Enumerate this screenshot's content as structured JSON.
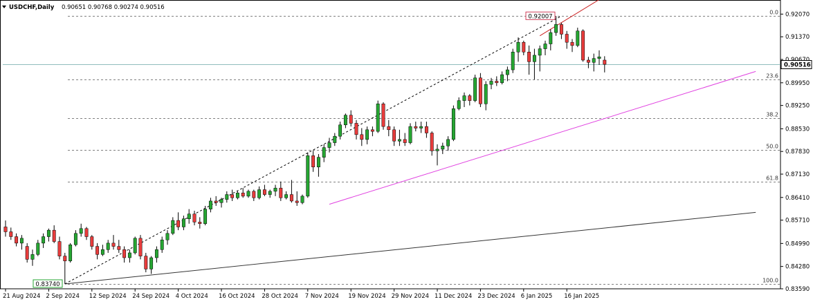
{
  "header": {
    "symbol": "USDCHF,Daily",
    "ohlc": "0.90651 0.90768 0.90274 0.90516"
  },
  "colors": {
    "bull": "#26a632",
    "bear": "#e83c3c",
    "wick": "#000000",
    "fib": "#555555",
    "trend_magenta": "#e040e0",
    "trend_dark": "#333333",
    "current_price_line": "#6aa6a6",
    "high_label": "#d0405a",
    "low_label": "#26a632"
  },
  "annotations": {
    "high_label": "0.92007",
    "low_label": "0.83740",
    "current_price_label": "0.90516"
  },
  "chart_data": {
    "type": "candlestick",
    "title": "",
    "ylim": [
      0.8359,
      0.9242
    ],
    "y_ticks": [
      "0.92070",
      "0.91370",
      "0.90670",
      "0.89950",
      "0.89250",
      "0.88530",
      "0.87830",
      "0.87130",
      "0.86410",
      "0.85710",
      "0.84990",
      "0.84280",
      "0.83590"
    ],
    "x_ticks": [
      {
        "label": "21 Aug 2024",
        "index": 0
      },
      {
        "label": "2 Sep 2024",
        "index": 8
      },
      {
        "label": "12 Sep 2024",
        "index": 16
      },
      {
        "label": "24 Sep 2024",
        "index": 24
      },
      {
        "label": "4 Oct 2024",
        "index": 32
      },
      {
        "label": "16 Oct 2024",
        "index": 40
      },
      {
        "label": "28 Oct 2024",
        "index": 48
      },
      {
        "label": "7 Nov 2024",
        "index": 56
      },
      {
        "label": "19 Nov 2024",
        "index": 64
      },
      {
        "label": "29 Nov 2024",
        "index": 72
      },
      {
        "label": "11 Dec 2024",
        "index": 80
      },
      {
        "label": "23 Dec 2024",
        "index": 88
      },
      {
        "label": "6 Jan 2025",
        "index": 96
      },
      {
        "label": "16 Jan 2025",
        "index": 104
      }
    ],
    "fibonacci": {
      "high": 0.92007,
      "low": 0.8374,
      "levels": [
        {
          "label": "0.0",
          "price": 0.92007
        },
        {
          "label": "23.6",
          "price": 0.90056
        },
        {
          "label": "38.2",
          "price": 0.88849
        },
        {
          "label": "50.0",
          "price": 0.87874
        },
        {
          "label": "61.8",
          "price": 0.86898
        },
        {
          "label": "100.0",
          "price": 0.8374
        }
      ]
    },
    "current_price": 0.90516,
    "candles": [
      {
        "o": 0.855,
        "h": 0.857,
        "l": 0.852,
        "c": 0.8535
      },
      {
        "o": 0.8535,
        "h": 0.8548,
        "l": 0.851,
        "c": 0.852
      },
      {
        "o": 0.852,
        "h": 0.853,
        "l": 0.849,
        "c": 0.85
      },
      {
        "o": 0.85,
        "h": 0.8525,
        "l": 0.848,
        "c": 0.8515
      },
      {
        "o": 0.849,
        "h": 0.85,
        "l": 0.844,
        "c": 0.845
      },
      {
        "o": 0.845,
        "h": 0.848,
        "l": 0.843,
        "c": 0.8465
      },
      {
        "o": 0.8465,
        "h": 0.851,
        "l": 0.846,
        "c": 0.85
      },
      {
        "o": 0.85,
        "h": 0.853,
        "l": 0.8485,
        "c": 0.852
      },
      {
        "o": 0.852,
        "h": 0.8545,
        "l": 0.8505,
        "c": 0.854
      },
      {
        "o": 0.854,
        "h": 0.8555,
        "l": 0.85,
        "c": 0.8505
      },
      {
        "o": 0.8505,
        "h": 0.852,
        "l": 0.845,
        "c": 0.846
      },
      {
        "o": 0.846,
        "h": 0.847,
        "l": 0.8374,
        "c": 0.8445
      },
      {
        "o": 0.8445,
        "h": 0.85,
        "l": 0.844,
        "c": 0.8495
      },
      {
        "o": 0.8495,
        "h": 0.854,
        "l": 0.849,
        "c": 0.853
      },
      {
        "o": 0.853,
        "h": 0.856,
        "l": 0.852,
        "c": 0.8545
      },
      {
        "o": 0.8545,
        "h": 0.855,
        "l": 0.851,
        "c": 0.852
      },
      {
        "o": 0.852,
        "h": 0.8525,
        "l": 0.848,
        "c": 0.849
      },
      {
        "o": 0.849,
        "h": 0.85,
        "l": 0.845,
        "c": 0.8465
      },
      {
        "o": 0.8465,
        "h": 0.8495,
        "l": 0.846,
        "c": 0.848
      },
      {
        "o": 0.848,
        "h": 0.851,
        "l": 0.847,
        "c": 0.85
      },
      {
        "o": 0.85,
        "h": 0.8525,
        "l": 0.848,
        "c": 0.849
      },
      {
        "o": 0.849,
        "h": 0.851,
        "l": 0.847,
        "c": 0.848
      },
      {
        "o": 0.848,
        "h": 0.849,
        "l": 0.844,
        "c": 0.8455
      },
      {
        "o": 0.8455,
        "h": 0.848,
        "l": 0.844,
        "c": 0.847
      },
      {
        "o": 0.847,
        "h": 0.852,
        "l": 0.8465,
        "c": 0.8515
      },
      {
        "o": 0.8515,
        "h": 0.8525,
        "l": 0.845,
        "c": 0.846
      },
      {
        "o": 0.846,
        "h": 0.847,
        "l": 0.841,
        "c": 0.842
      },
      {
        "o": 0.842,
        "h": 0.846,
        "l": 0.8405,
        "c": 0.8455
      },
      {
        "o": 0.8455,
        "h": 0.849,
        "l": 0.844,
        "c": 0.848
      },
      {
        "o": 0.848,
        "h": 0.852,
        "l": 0.847,
        "c": 0.851
      },
      {
        "o": 0.851,
        "h": 0.854,
        "l": 0.8495,
        "c": 0.853
      },
      {
        "o": 0.853,
        "h": 0.858,
        "l": 0.8525,
        "c": 0.857
      },
      {
        "o": 0.857,
        "h": 0.8595,
        "l": 0.854,
        "c": 0.855
      },
      {
        "o": 0.855,
        "h": 0.8585,
        "l": 0.854,
        "c": 0.8575
      },
      {
        "o": 0.8575,
        "h": 0.8605,
        "l": 0.856,
        "c": 0.859
      },
      {
        "o": 0.859,
        "h": 0.86,
        "l": 0.8555,
        "c": 0.8565
      },
      {
        "o": 0.8565,
        "h": 0.858,
        "l": 0.8545,
        "c": 0.856
      },
      {
        "o": 0.856,
        "h": 0.8615,
        "l": 0.8555,
        "c": 0.8605
      },
      {
        "o": 0.8605,
        "h": 0.864,
        "l": 0.8595,
        "c": 0.863
      },
      {
        "o": 0.863,
        "h": 0.8645,
        "l": 0.8615,
        "c": 0.8625
      },
      {
        "o": 0.8625,
        "h": 0.864,
        "l": 0.861,
        "c": 0.8635
      },
      {
        "o": 0.8635,
        "h": 0.866,
        "l": 0.8625,
        "c": 0.865
      },
      {
        "o": 0.865,
        "h": 0.8665,
        "l": 0.863,
        "c": 0.864
      },
      {
        "o": 0.864,
        "h": 0.866,
        "l": 0.8635,
        "c": 0.8655
      },
      {
        "o": 0.8655,
        "h": 0.867,
        "l": 0.864,
        "c": 0.8645
      },
      {
        "o": 0.8645,
        "h": 0.8665,
        "l": 0.864,
        "c": 0.866
      },
      {
        "o": 0.866,
        "h": 0.8665,
        "l": 0.863,
        "c": 0.864
      },
      {
        "o": 0.864,
        "h": 0.8675,
        "l": 0.8635,
        "c": 0.8665
      },
      {
        "o": 0.8665,
        "h": 0.868,
        "l": 0.8645,
        "c": 0.865
      },
      {
        "o": 0.865,
        "h": 0.8665,
        "l": 0.864,
        "c": 0.866
      },
      {
        "o": 0.866,
        "h": 0.868,
        "l": 0.8645,
        "c": 0.867
      },
      {
        "o": 0.867,
        "h": 0.869,
        "l": 0.863,
        "c": 0.864
      },
      {
        "o": 0.864,
        "h": 0.866,
        "l": 0.8635,
        "c": 0.865
      },
      {
        "o": 0.865,
        "h": 0.8695,
        "l": 0.8625,
        "c": 0.863
      },
      {
        "o": 0.863,
        "h": 0.866,
        "l": 0.8615,
        "c": 0.8625
      },
      {
        "o": 0.8625,
        "h": 0.865,
        "l": 0.862,
        "c": 0.8645
      },
      {
        "o": 0.8645,
        "h": 0.878,
        "l": 0.864,
        "c": 0.877
      },
      {
        "o": 0.877,
        "h": 0.8785,
        "l": 0.872,
        "c": 0.8735
      },
      {
        "o": 0.8735,
        "h": 0.8775,
        "l": 0.8705,
        "c": 0.8765
      },
      {
        "o": 0.8765,
        "h": 0.8805,
        "l": 0.875,
        "c": 0.8795
      },
      {
        "o": 0.8795,
        "h": 0.8825,
        "l": 0.878,
        "c": 0.881
      },
      {
        "o": 0.881,
        "h": 0.884,
        "l": 0.88,
        "c": 0.883
      },
      {
        "o": 0.883,
        "h": 0.8875,
        "l": 0.882,
        "c": 0.8865
      },
      {
        "o": 0.8865,
        "h": 0.89,
        "l": 0.8855,
        "c": 0.8895
      },
      {
        "o": 0.8895,
        "h": 0.891,
        "l": 0.886,
        "c": 0.887
      },
      {
        "o": 0.887,
        "h": 0.888,
        "l": 0.882,
        "c": 0.8835
      },
      {
        "o": 0.8835,
        "h": 0.8855,
        "l": 0.88,
        "c": 0.882
      },
      {
        "o": 0.882,
        "h": 0.886,
        "l": 0.8805,
        "c": 0.885
      },
      {
        "o": 0.885,
        "h": 0.886,
        "l": 0.883,
        "c": 0.8845
      },
      {
        "o": 0.8845,
        "h": 0.894,
        "l": 0.884,
        "c": 0.893
      },
      {
        "o": 0.893,
        "h": 0.8935,
        "l": 0.885,
        "c": 0.886
      },
      {
        "o": 0.886,
        "h": 0.888,
        "l": 0.883,
        "c": 0.885
      },
      {
        "o": 0.885,
        "h": 0.886,
        "l": 0.88,
        "c": 0.8815
      },
      {
        "o": 0.8815,
        "h": 0.885,
        "l": 0.88,
        "c": 0.882
      },
      {
        "o": 0.882,
        "h": 0.884,
        "l": 0.88,
        "c": 0.881
      },
      {
        "o": 0.881,
        "h": 0.887,
        "l": 0.8805,
        "c": 0.886
      },
      {
        "o": 0.886,
        "h": 0.8875,
        "l": 0.8845,
        "c": 0.8855
      },
      {
        "o": 0.8855,
        "h": 0.8875,
        "l": 0.884,
        "c": 0.886
      },
      {
        "o": 0.886,
        "h": 0.8875,
        "l": 0.8825,
        "c": 0.884
      },
      {
        "o": 0.884,
        "h": 0.8845,
        "l": 0.877,
        "c": 0.8785
      },
      {
        "o": 0.8785,
        "h": 0.8805,
        "l": 0.874,
        "c": 0.879
      },
      {
        "o": 0.879,
        "h": 0.881,
        "l": 0.8775,
        "c": 0.88
      },
      {
        "o": 0.88,
        "h": 0.883,
        "l": 0.8785,
        "c": 0.882
      },
      {
        "o": 0.882,
        "h": 0.8925,
        "l": 0.8815,
        "c": 0.8915
      },
      {
        "o": 0.8915,
        "h": 0.895,
        "l": 0.891,
        "c": 0.894
      },
      {
        "o": 0.894,
        "h": 0.8965,
        "l": 0.892,
        "c": 0.8955
      },
      {
        "o": 0.8955,
        "h": 0.896,
        "l": 0.8925,
        "c": 0.894
      },
      {
        "o": 0.894,
        "h": 0.902,
        "l": 0.8935,
        "c": 0.901
      },
      {
        "o": 0.901,
        "h": 0.9025,
        "l": 0.892,
        "c": 0.893
      },
      {
        "o": 0.893,
        "h": 0.9,
        "l": 0.891,
        "c": 0.899
      },
      {
        "o": 0.899,
        "h": 0.901,
        "l": 0.8975,
        "c": 0.9
      },
      {
        "o": 0.9,
        "h": 0.9015,
        "l": 0.8985,
        "c": 0.8995
      },
      {
        "o": 0.8995,
        "h": 0.903,
        "l": 0.899,
        "c": 0.902
      },
      {
        "o": 0.902,
        "h": 0.9045,
        "l": 0.9,
        "c": 0.9035
      },
      {
        "o": 0.9035,
        "h": 0.91,
        "l": 0.9025,
        "c": 0.909
      },
      {
        "o": 0.909,
        "h": 0.9135,
        "l": 0.906,
        "c": 0.912
      },
      {
        "o": 0.912,
        "h": 0.9125,
        "l": 0.908,
        "c": 0.909
      },
      {
        "o": 0.909,
        "h": 0.911,
        "l": 0.902,
        "c": 0.906
      },
      {
        "o": 0.906,
        "h": 0.91,
        "l": 0.9005,
        "c": 0.908
      },
      {
        "o": 0.908,
        "h": 0.911,
        "l": 0.903,
        "c": 0.91
      },
      {
        "o": 0.91,
        "h": 0.9125,
        "l": 0.908,
        "c": 0.9115
      },
      {
        "o": 0.9115,
        "h": 0.916,
        "l": 0.9095,
        "c": 0.915
      },
      {
        "o": 0.915,
        "h": 0.9201,
        "l": 0.914,
        "c": 0.9175
      },
      {
        "o": 0.9175,
        "h": 0.918,
        "l": 0.913,
        "c": 0.9145
      },
      {
        "o": 0.9145,
        "h": 0.9155,
        "l": 0.91,
        "c": 0.912
      },
      {
        "o": 0.912,
        "h": 0.913,
        "l": 0.909,
        "c": 0.911
      },
      {
        "o": 0.911,
        "h": 0.9165,
        "l": 0.9105,
        "c": 0.9155
      },
      {
        "o": 0.9155,
        "h": 0.916,
        "l": 0.906,
        "c": 0.9065
      },
      {
        "o": 0.9065,
        "h": 0.9075,
        "l": 0.904,
        "c": 0.9058
      },
      {
        "o": 0.9058,
        "h": 0.9085,
        "l": 0.903,
        "c": 0.907
      },
      {
        "o": 0.907,
        "h": 0.9095,
        "l": 0.905,
        "c": 0.9075
      },
      {
        "o": 0.9065,
        "h": 0.9077,
        "l": 0.9027,
        "c": 0.9052
      }
    ],
    "trend_lines": [
      {
        "name": "magenta",
        "points": [
          [
            60,
            0.862
          ],
          [
            139,
            0.903
          ]
        ]
      },
      {
        "name": "dark",
        "points": [
          [
            11,
            0.8374
          ],
          [
            139,
            0.8595
          ]
        ]
      },
      {
        "name": "dashed",
        "points": [
          [
            11,
            0.8374
          ],
          [
            103,
            0.9201
          ]
        ]
      },
      {
        "name": "red",
        "points": [
          [
            99,
            0.914
          ],
          [
            111,
            0.9262
          ]
        ]
      }
    ]
  }
}
